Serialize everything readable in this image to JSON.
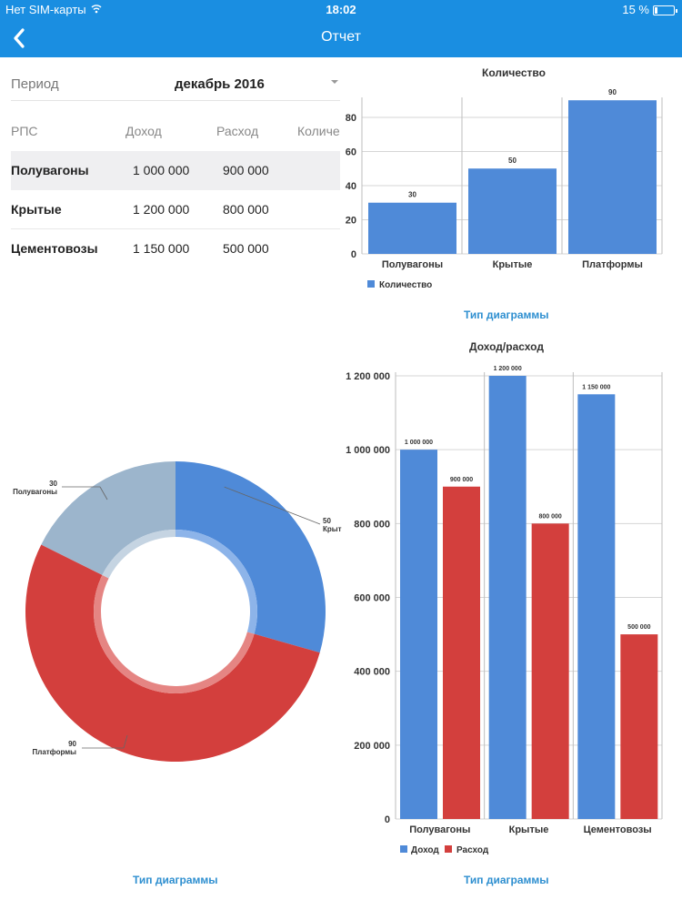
{
  "status_bar": {
    "carrier": "Нет SIM-карты",
    "wifi_icon": "wifi-icon",
    "time": "18:02",
    "battery_percent": "15 %",
    "battery_level": 0.15
  },
  "nav": {
    "title": "Отчет",
    "back_icon": "chevron-left-icon"
  },
  "colors": {
    "nav_bg": "#1a8ee1",
    "blue_series": "#4f8ad8",
    "red_series": "#d33f3d",
    "grey_series": "#9cb5cc",
    "link": "#2e8fd0"
  },
  "period": {
    "label": "Период",
    "value": "декабрь 2016"
  },
  "table": {
    "headers": [
      "РПС",
      "Доход",
      "Расход",
      "Количе"
    ],
    "rows": [
      {
        "name": "Полувагоны",
        "income": "1 000 000",
        "expense": "900 000"
      },
      {
        "name": "Крытые",
        "income": "1 200 000",
        "expense": "800 000"
      },
      {
        "name": "Цементовозы",
        "income": "1 150 000",
        "expense": "500 000"
      }
    ]
  },
  "chart_type_link": "Тип диаграммы",
  "chart_data": [
    {
      "type": "bar",
      "title": "Количество",
      "categories": [
        "Полувагоны",
        "Крытые",
        "Платформы"
      ],
      "values": [
        30,
        50,
        90
      ],
      "value_labels": [
        "30",
        "50",
        "90"
      ],
      "legend": [
        "Количество"
      ],
      "legend_position": "bottom-left",
      "yticks": [
        0,
        20,
        40,
        60,
        80
      ],
      "ytick_labels": [
        "0",
        "20",
        "40",
        "60",
        "80"
      ],
      "ylim": [
        0,
        91.7
      ],
      "grid": true
    },
    {
      "type": "pie",
      "donut": true,
      "categories": [
        "Крытые",
        "Платформы",
        "Полувагоны"
      ],
      "values": [
        50,
        90,
        30
      ],
      "labels": [
        {
          "value": "50",
          "name": "Крыт"
        },
        {
          "value": "90",
          "name": "Платформы"
        },
        {
          "value": "30",
          "name": "Полувагоны"
        }
      ]
    },
    {
      "type": "bar",
      "title": "Доход/расход",
      "categories": [
        "Полувагоны",
        "Крытые",
        "Цементовозы"
      ],
      "series": [
        {
          "name": "Доход",
          "values": [
            1000000,
            1200000,
            1150000
          ],
          "value_labels": [
            "1 000 000",
            "1 200 000",
            "1 150 000"
          ]
        },
        {
          "name": "Расход",
          "values": [
            900000,
            800000,
            500000
          ],
          "value_labels": [
            "900 000",
            "800 000",
            "500 000"
          ]
        }
      ],
      "legend_position": "bottom-left",
      "yticks": [
        0,
        200000,
        400000,
        600000,
        800000,
        1000000,
        1200000
      ],
      "ytick_labels": [
        "0",
        "200 000",
        "400 000",
        "600 000",
        "800 000",
        "1 000 000",
        "1 200 000"
      ],
      "ylim": [
        0,
        1200000
      ],
      "grid": true
    }
  ]
}
